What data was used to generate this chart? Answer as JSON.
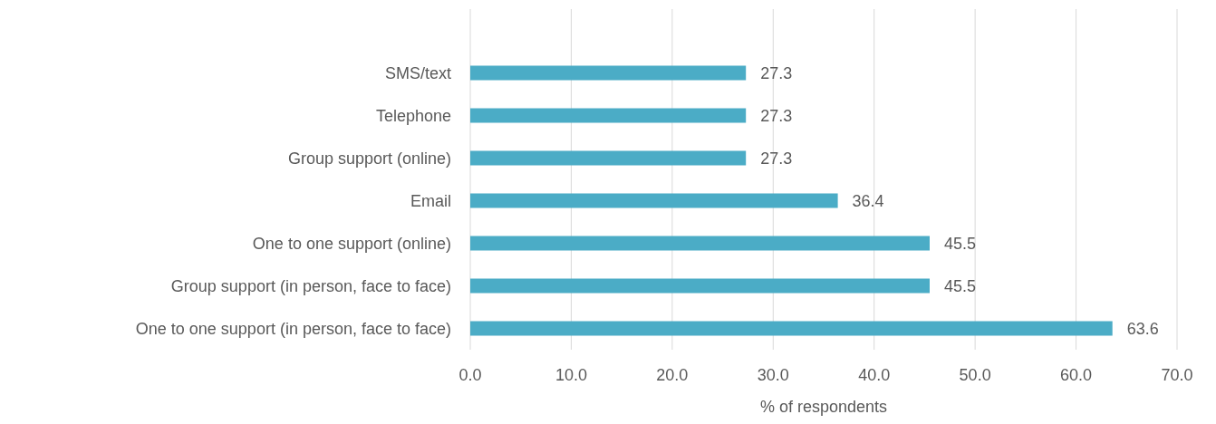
{
  "chart_data": {
    "type": "bar",
    "orientation": "horizontal",
    "categories": [
      "SMS/text",
      "Telephone",
      "Group support (online)",
      "Email",
      "One to one support (online)",
      "Group support (in person, face to face)",
      "One to one support (in person, face to face)"
    ],
    "values": [
      27.3,
      27.3,
      27.3,
      36.4,
      45.5,
      45.5,
      63.6
    ],
    "color": "#4bacc6",
    "xlabel": "% of respondents",
    "xlim": [
      0,
      70
    ],
    "xticks": [
      {
        "value": 0,
        "label": "0.0"
      },
      {
        "value": 10,
        "label": "10.0"
      },
      {
        "value": 20,
        "label": "20.0"
      },
      {
        "value": 30,
        "label": "30.0"
      },
      {
        "value": 40,
        "label": "40.0"
      },
      {
        "value": 50,
        "label": "50.0"
      },
      {
        "value": 60,
        "label": "60.0"
      },
      {
        "value": 70,
        "label": "70.0"
      }
    ],
    "grid": "x",
    "data_labels": true
  }
}
